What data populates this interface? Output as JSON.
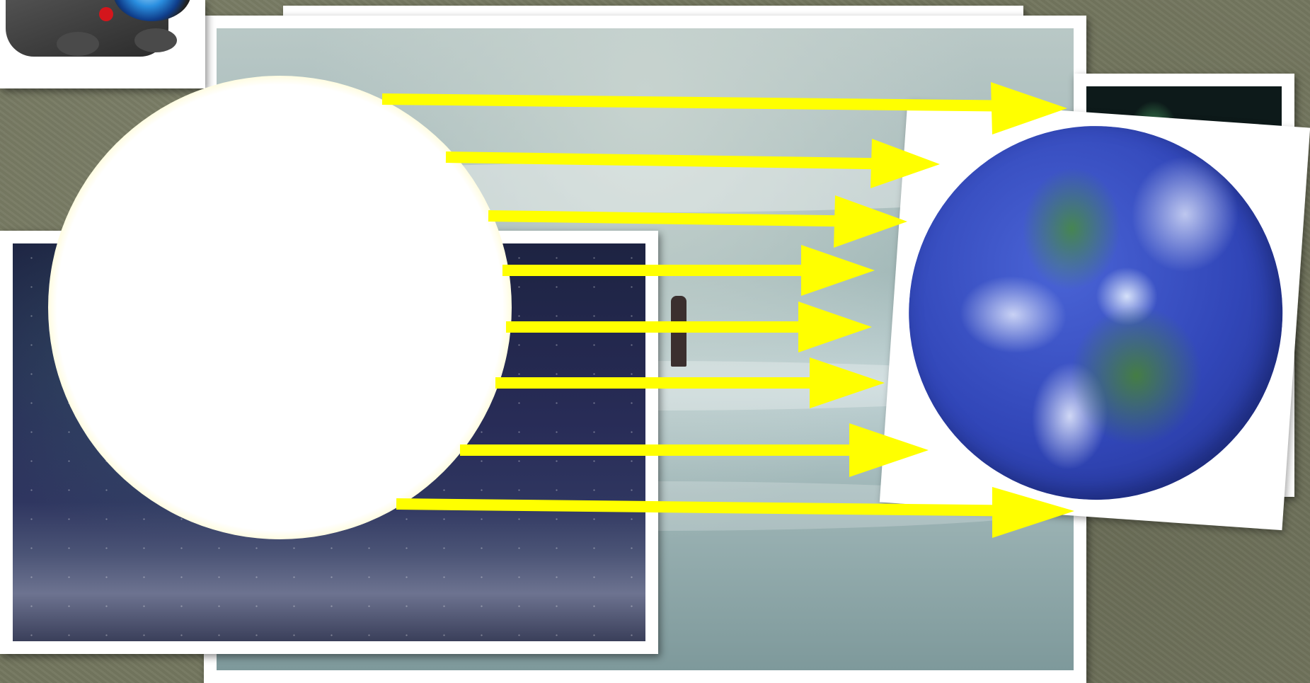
{
  "diagram": {
    "colors": {
      "background": "#74775f",
      "photo_frame": "#ffffff",
      "arrow": "#ffff00",
      "sun_core": "#ffffff",
      "sun_edge": "#ffc20e",
      "earth_ocean": "#3146b8"
    },
    "icons": [
      "camera-icon",
      "sun-icon",
      "earth-icon"
    ],
    "arrow_count": 8
  }
}
